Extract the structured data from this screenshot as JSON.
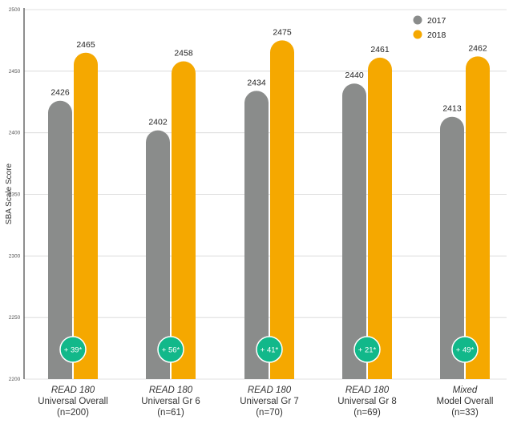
{
  "chart_data": {
    "type": "bar",
    "ylabel": "SBA Scale Score",
    "ylim": [
      2200,
      2500
    ],
    "yticks": [
      2200,
      2250,
      2300,
      2350,
      2400,
      2450,
      2500
    ],
    "grid": true,
    "legend_position": "top-right",
    "colors": {
      "2017": "#8a8c8b",
      "2018": "#f5a800",
      "badge": "#12b88a"
    },
    "categories": [
      {
        "program": "READ 180",
        "line2": "Universal Overall",
        "n": "(n=200)",
        "gain": "+ 39*"
      },
      {
        "program": "READ 180",
        "line2": "Universal Gr 6",
        "n": "(n=61)",
        "gain": "+ 56*"
      },
      {
        "program": "READ 180",
        "line2": "Universal Gr 7",
        "n": "(n=70)",
        "gain": "+ 41*"
      },
      {
        "program": "READ 180",
        "line2": "Universal Gr 8",
        "n": "(n=69)",
        "gain": "+ 21*"
      },
      {
        "program": "Mixed",
        "line2": "Model Overall",
        "n": "(n=33)",
        "gain": "+ 49*"
      }
    ],
    "series": [
      {
        "name": "2017",
        "values": [
          2426,
          2402,
          2434,
          2440,
          2413
        ]
      },
      {
        "name": "2018",
        "values": [
          2465,
          2458,
          2475,
          2461,
          2462
        ]
      }
    ]
  }
}
